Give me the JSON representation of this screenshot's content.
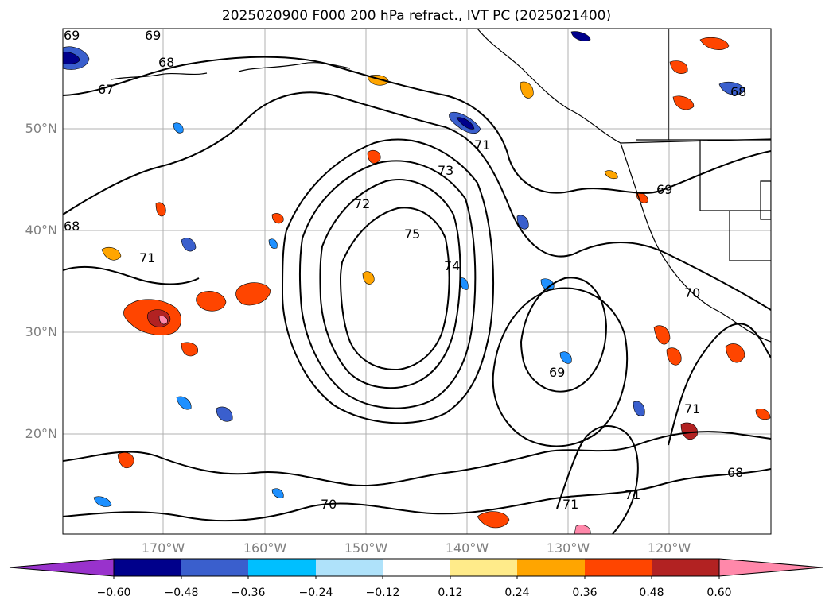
{
  "title": "2025020900 F000 200 hPa refract., IVT PC (2025021400)",
  "lat_labels": [
    "50°N",
    "40°N",
    "30°N",
    "20°N"
  ],
  "lon_labels": [
    "170°W",
    "160°W",
    "150°W",
    "140°W",
    "130°W",
    "120°W"
  ],
  "contour_labels": [
    "69",
    "69",
    "68",
    "67",
    "68",
    "71",
    "73",
    "72",
    "75",
    "74",
    "71",
    "69",
    "68",
    "70",
    "69",
    "71",
    "71",
    "71",
    "70",
    "68"
  ],
  "colorbar": {
    "ticks": [
      "−0.60",
      "−0.48",
      "−0.36",
      "−0.24",
      "−0.12",
      "0.12",
      "0.24",
      "0.36",
      "0.48",
      "0.60"
    ],
    "colors": [
      "#9932cc",
      "#00008b",
      "#3a5fcd",
      "#00bfff",
      "#afe2fa",
      "#ffffff",
      "#ffeb8a",
      "#ffa500",
      "#ff4500",
      "#b22222",
      "#ff88aa"
    ]
  },
  "colors": {
    "neg_strong": "#00008b",
    "neg_mid": "#3a5fcd",
    "neg_light": "#1e90ff",
    "pos_light": "#ffa500",
    "pos_mid": "#ff4500",
    "pos_strong": "#b22222",
    "pos_max": "#ff88aa"
  }
}
